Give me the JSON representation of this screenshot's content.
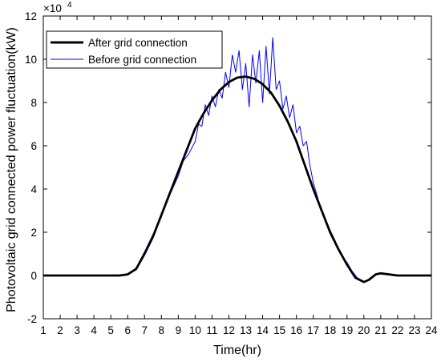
{
  "chart_data": {
    "type": "line",
    "xlabel": "Time(hr)",
    "ylabel": "Photovoltaic grid connected power fluctuation(kW)",
    "y_exponent_label": "×10",
    "y_exponent_power": "4",
    "xlim": [
      1,
      24
    ],
    "ylim": [
      -2,
      12
    ],
    "x_ticks": [
      "1",
      "2",
      "3",
      "4",
      "5",
      "6",
      "7",
      "8",
      "9",
      "10",
      "11",
      "12",
      "13",
      "14",
      "15",
      "16",
      "17",
      "18",
      "19",
      "20",
      "21",
      "22",
      "23",
      "24"
    ],
    "y_ticks": [
      "-2",
      "0",
      "2",
      "4",
      "6",
      "8",
      "10",
      "12"
    ],
    "grid": false,
    "legend_position": "top-left",
    "series": [
      {
        "name": "After grid connection",
        "color": "#000000",
        "x": [
          1,
          2,
          3,
          4,
          5,
          5.5,
          6,
          6.5,
          7,
          7.5,
          8,
          8.5,
          9,
          9.5,
          10,
          10.5,
          11,
          11.5,
          12,
          12.5,
          13,
          13.5,
          14,
          14.5,
          15,
          15.5,
          16,
          16.5,
          17,
          17.5,
          18,
          18.5,
          19,
          19.5,
          20,
          20.3,
          20.7,
          21,
          21.5,
          22,
          23,
          24
        ],
        "values": [
          0,
          0,
          0,
          0,
          0,
          0,
          0.05,
          0.3,
          1.0,
          1.8,
          2.8,
          3.8,
          4.8,
          5.8,
          6.8,
          7.5,
          8.1,
          8.6,
          8.95,
          9.15,
          9.2,
          9.1,
          8.85,
          8.45,
          7.85,
          7.1,
          6.2,
          5.1,
          4.0,
          3.0,
          2.0,
          1.2,
          0.5,
          -0.1,
          -0.3,
          -0.2,
          0.05,
          0.1,
          0.05,
          0,
          0,
          0
        ]
      },
      {
        "name": "Before grid connection",
        "color": "#0000ff",
        "x": [
          1,
          2,
          3,
          4,
          5,
          5.5,
          6,
          6.5,
          7,
          7.5,
          8,
          8.3,
          8.6,
          9,
          9.3,
          9.6,
          10,
          10.2,
          10.4,
          10.6,
          10.8,
          11,
          11.2,
          11.4,
          11.6,
          11.8,
          12,
          12.2,
          12.4,
          12.6,
          12.8,
          13,
          13.2,
          13.4,
          13.6,
          13.8,
          14,
          14.2,
          14.4,
          14.6,
          14.8,
          15,
          15.2,
          15.4,
          15.6,
          15.8,
          16,
          16.2,
          16.4,
          16.6,
          16.8,
          17,
          17.3,
          17.6,
          18,
          18.3,
          18.6,
          19,
          19.3,
          19.6,
          20,
          20.3,
          20.7,
          21,
          21.5,
          22,
          23,
          24
        ],
        "values": [
          0,
          0,
          0,
          0,
          0,
          0,
          0.05,
          0.35,
          1.1,
          1.9,
          2.7,
          3.5,
          3.9,
          4.6,
          5.3,
          5.6,
          6.2,
          7.0,
          6.9,
          7.9,
          7.4,
          8.3,
          7.8,
          8.6,
          8.2,
          9.4,
          8.7,
          10.2,
          9.4,
          10.4,
          8.6,
          9.8,
          7.8,
          10.2,
          8.9,
          10.4,
          8.0,
          10.6,
          8.4,
          11.0,
          8.6,
          9.0,
          7.7,
          8.3,
          7.3,
          7.9,
          6.6,
          6.9,
          6.0,
          6.2,
          5.1,
          4.3,
          3.5,
          2.8,
          2.1,
          1.6,
          1.0,
          0.6,
          0.2,
          -0.1,
          -0.3,
          -0.2,
          0.05,
          0.1,
          0.05,
          0,
          0,
          0
        ]
      }
    ]
  }
}
